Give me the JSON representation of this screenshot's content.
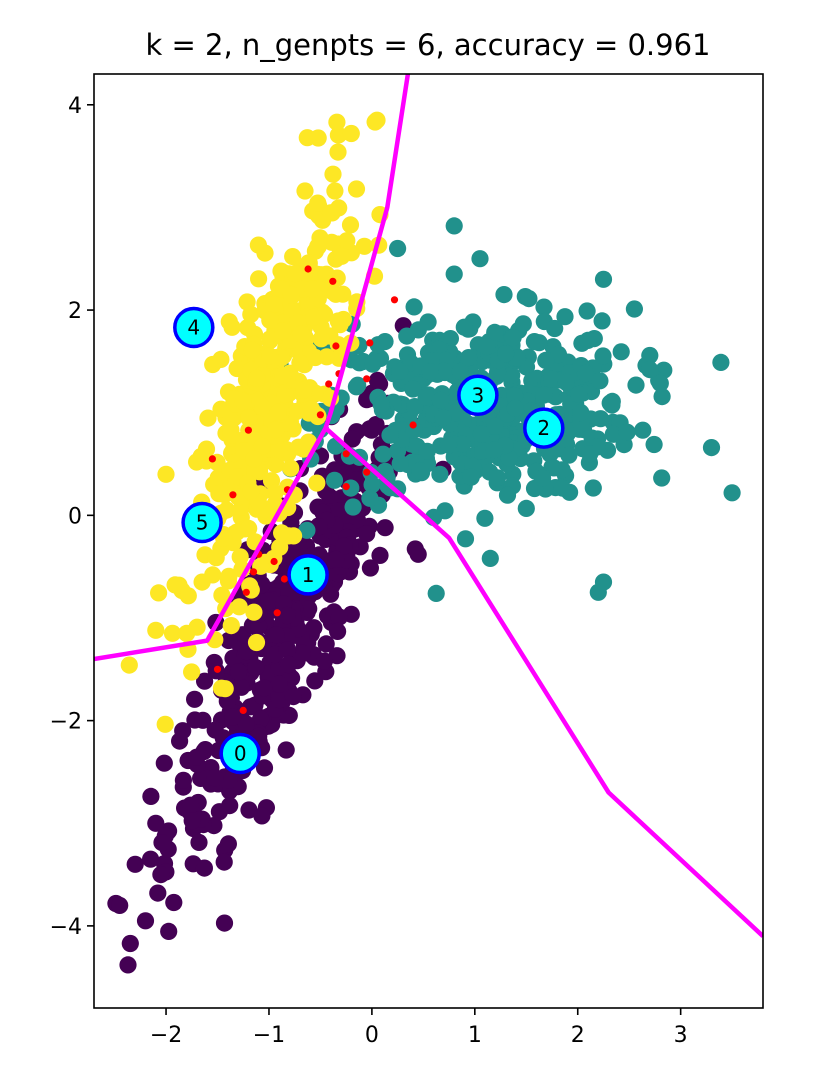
{
  "chart_data": {
    "type": "scatter",
    "title": "k = 2, n_genpts = 6, accuracy = 0.961",
    "xlabel": "",
    "ylabel": "",
    "xlim": [
      -2.7,
      3.8
    ],
    "ylim": [
      -4.8,
      4.3
    ],
    "xticks": [
      -2,
      -1,
      0,
      1,
      2,
      3
    ],
    "xtick_labels": [
      "−2",
      "−1",
      "0",
      "1",
      "2",
      "3"
    ],
    "yticks": [
      -4,
      -2,
      0,
      2,
      4
    ],
    "ytick_labels": [
      "−4",
      "−2",
      "0",
      "2",
      "4"
    ],
    "grid": false,
    "colors": {
      "class_0": "#440154",
      "class_1": "#21918c",
      "class_2": "#fde725",
      "misclassified": "#ff0000",
      "boundary": "#ff00ff",
      "generator_fill": "#00ffff",
      "generator_edge": "#0000ff"
    },
    "classes": [
      {
        "label": 0,
        "color": "#440154",
        "center": [
          -0.85,
          -1.1
        ],
        "cov": [
          [
            0.32,
            0.55
          ],
          [
            0.55,
            1.25
          ]
        ],
        "count": 420,
        "outliers": [
          [
            -2.37,
            -4.38
          ],
          [
            -2.45,
            -3.8
          ],
          [
            -2.2,
            -3.95
          ],
          [
            -2.3,
            -3.4
          ],
          [
            -2.15,
            -3.35
          ],
          [
            -2.05,
            -3.5
          ],
          [
            -2.1,
            -3.0
          ],
          [
            0.45,
            -0.38
          ],
          [
            -0.05,
            -0.18
          ],
          [
            0.1,
            0.2
          ]
        ]
      },
      {
        "label": 1,
        "color": "#21918c",
        "center": [
          1.05,
          1.05
        ],
        "cov": [
          [
            0.55,
            0.02
          ],
          [
            0.02,
            0.2
          ]
        ],
        "count": 470,
        "outliers": [
          [
            3.5,
            0.22
          ],
          [
            3.3,
            0.66
          ],
          [
            2.7,
            1.42
          ],
          [
            2.25,
            2.3
          ],
          [
            0.8,
            2.82
          ],
          [
            1.05,
            2.5
          ],
          [
            0.8,
            2.35
          ],
          [
            0.25,
            2.6
          ],
          [
            2.2,
            -0.75
          ],
          [
            2.25,
            -0.65
          ],
          [
            1.15,
            -0.42
          ],
          [
            0.6,
            -0.02
          ]
        ]
      },
      {
        "label": 2,
        "color": "#fde725",
        "center": [
          -0.95,
          1.15
        ],
        "cov": [
          [
            0.14,
            0.27
          ],
          [
            0.27,
            0.95
          ]
        ],
        "count": 430,
        "outliers": [
          [
            0.05,
            3.85
          ],
          [
            -0.2,
            3.72
          ],
          [
            -0.65,
            3.16
          ],
          [
            -0.15,
            3.18
          ],
          [
            -2.0,
            0.4
          ],
          [
            -2.1,
            -1.12
          ],
          [
            -1.8,
            -1.15
          ],
          [
            -1.65,
            -0.65
          ]
        ]
      }
    ],
    "misclassified": [
      [
        -0.62,
        2.4
      ],
      [
        -0.38,
        2.28
      ],
      [
        0.22,
        2.1
      ],
      [
        -0.35,
        1.65
      ],
      [
        -0.02,
        1.68
      ],
      [
        -0.32,
        1.38
      ],
      [
        -0.42,
        1.28
      ],
      [
        -0.05,
        1.33
      ],
      [
        -0.5,
        0.98
      ],
      [
        -1.2,
        0.83
      ],
      [
        -1.55,
        0.55
      ],
      [
        0.4,
        0.88
      ],
      [
        -0.25,
        0.6
      ],
      [
        -0.05,
        0.42
      ],
      [
        -1.35,
        0.2
      ],
      [
        -0.25,
        0.28
      ],
      [
        -0.82,
        0.25
      ],
      [
        -1.1,
        -0.38
      ],
      [
        -0.95,
        -0.45
      ],
      [
        -0.5,
        -0.55
      ],
      [
        -0.85,
        -0.62
      ],
      [
        -1.15,
        -0.55
      ],
      [
        -1.5,
        -1.5
      ],
      [
        -1.25,
        -1.9
      ],
      [
        -0.92,
        -0.95
      ],
      [
        -1.22,
        -0.75
      ],
      [
        -0.6,
        -0.65
      ]
    ],
    "generators": [
      {
        "label": "0",
        "x": -1.28,
        "y": -2.32
      },
      {
        "label": "1",
        "x": -0.62,
        "y": -0.58
      },
      {
        "label": "2",
        "x": 1.67,
        "y": 0.85
      },
      {
        "label": "3",
        "x": 1.03,
        "y": 1.17
      },
      {
        "label": "4",
        "x": -1.73,
        "y": 1.83
      },
      {
        "label": "5",
        "x": -1.65,
        "y": -0.07
      }
    ],
    "boundaries": [
      {
        "x": [
          -2.7,
          -1.6,
          -0.45,
          0.75,
          2.3,
          3.8
        ],
        "y": [
          -1.4,
          -1.22,
          0.85,
          -0.22,
          -2.7,
          -4.1
        ]
      },
      {
        "x": [
          -0.45,
          -0.4,
          0.15,
          0.35
        ],
        "y": [
          0.85,
          1.0,
          3.0,
          4.3
        ]
      }
    ]
  }
}
